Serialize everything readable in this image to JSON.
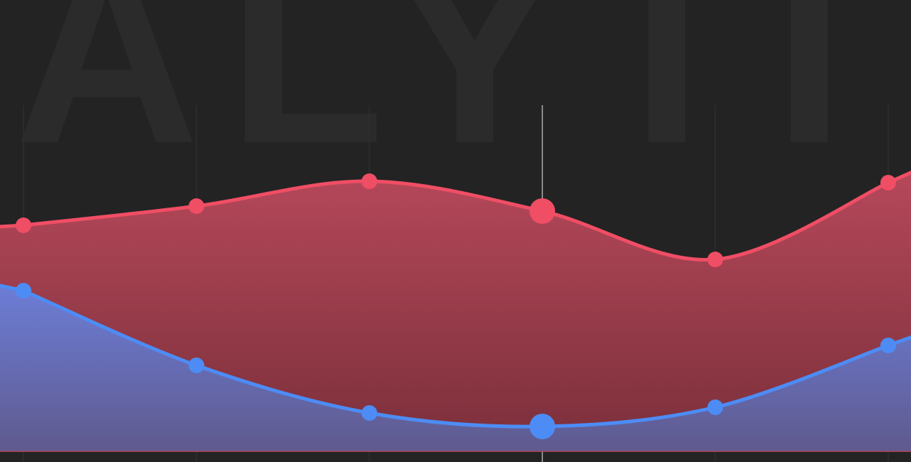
{
  "watermark": "ALYTI",
  "chart_data": {
    "type": "area",
    "ylim": [
      0,
      500
    ],
    "highlight_index": 3,
    "series": [
      {
        "color": "#f04e65",
        "fill_top": "#b5485a",
        "fill_bottom": "#7a2f3a",
        "values": [
          318,
          345,
          380,
          338,
          270,
          378
        ]
      },
      {
        "color": "#4d8cf5",
        "fill_top": "#6c7dd6",
        "fill_bottom": "#5f5a8e",
        "values": [
          226,
          121,
          54,
          35,
          62,
          149
        ]
      }
    ]
  }
}
